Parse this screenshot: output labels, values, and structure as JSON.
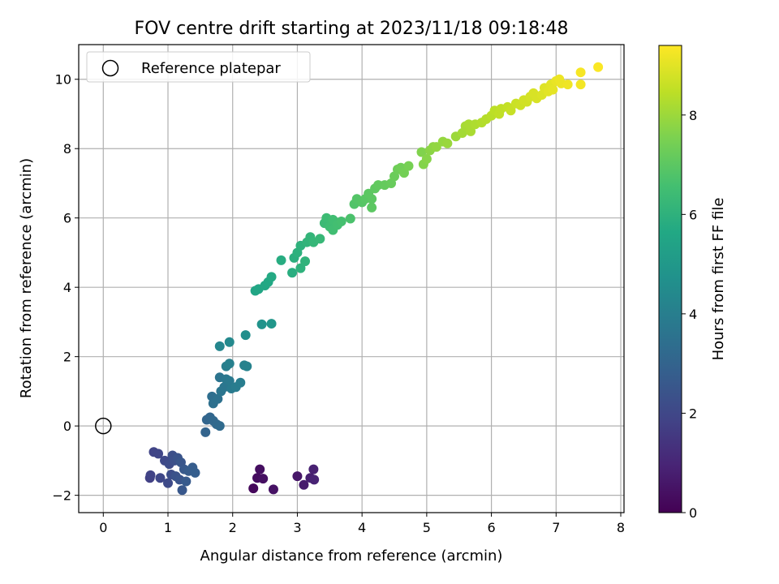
{
  "chart_data": {
    "type": "scatter",
    "title": "FOV centre drift starting at 2023/11/18 09:18:48",
    "xlabel": "Angular distance from reference (arcmin)",
    "ylabel": "Rotation from reference (arcmin)",
    "colorbar_label": "Hours from first FF file",
    "xlim": [
      -0.38,
      8.05
    ],
    "ylim": [
      -2.5,
      11.0
    ],
    "x_ticks": [
      0,
      1,
      2,
      3,
      4,
      5,
      6,
      7,
      8
    ],
    "y_ticks": [
      -2,
      0,
      2,
      4,
      6,
      8,
      10
    ],
    "colorbar_ticks": [
      0,
      2,
      4,
      6,
      8
    ],
    "colorbar_range": [
      0,
      9.4
    ],
    "colormap": "viridis",
    "grid": true,
    "legend_location": "upper left",
    "legend": [
      {
        "label": "Reference platepar",
        "marker": "open-circle"
      }
    ],
    "reference_point": {
      "x": 0,
      "y": 0
    },
    "points": [
      {
        "x": 2.32,
        "y": -1.8,
        "t": 0.2
      },
      {
        "x": 2.38,
        "y": -1.5,
        "t": 0.3
      },
      {
        "x": 2.42,
        "y": -1.25,
        "t": 0.35
      },
      {
        "x": 2.47,
        "y": -1.52,
        "t": 0.4
      },
      {
        "x": 2.63,
        "y": -1.83,
        "t": 0.45
      },
      {
        "x": 3.0,
        "y": -1.45,
        "t": 0.6
      },
      {
        "x": 3.1,
        "y": -1.7,
        "t": 0.7
      },
      {
        "x": 3.2,
        "y": -1.5,
        "t": 0.8
      },
      {
        "x": 3.25,
        "y": -1.25,
        "t": 0.85
      },
      {
        "x": 3.26,
        "y": -1.55,
        "t": 0.9
      },
      {
        "x": 0.72,
        "y": -1.5,
        "t": 1.8
      },
      {
        "x": 0.73,
        "y": -1.42,
        "t": 1.85
      },
      {
        "x": 0.78,
        "y": -0.75,
        "t": 1.9
      },
      {
        "x": 0.85,
        "y": -0.8,
        "t": 1.95
      },
      {
        "x": 0.88,
        "y": -1.5,
        "t": 2.0
      },
      {
        "x": 0.95,
        "y": -1.0,
        "t": 2.05
      },
      {
        "x": 1.0,
        "y": -1.65,
        "t": 2.1
      },
      {
        "x": 1.02,
        "y": -1.1,
        "t": 2.15
      },
      {
        "x": 1.05,
        "y": -1.4,
        "t": 2.2
      },
      {
        "x": 1.07,
        "y": -0.85,
        "t": 2.25
      },
      {
        "x": 1.1,
        "y": -1.0,
        "t": 2.3
      },
      {
        "x": 1.12,
        "y": -1.45,
        "t": 2.35
      },
      {
        "x": 1.15,
        "y": -0.92,
        "t": 2.4
      },
      {
        "x": 1.18,
        "y": -1.55,
        "t": 2.45
      },
      {
        "x": 1.2,
        "y": -1.05,
        "t": 2.5
      },
      {
        "x": 1.22,
        "y": -1.85,
        "t": 2.55
      },
      {
        "x": 1.25,
        "y": -1.25,
        "t": 2.6
      },
      {
        "x": 1.28,
        "y": -1.6,
        "t": 2.65
      },
      {
        "x": 1.32,
        "y": -1.3,
        "t": 2.7
      },
      {
        "x": 1.38,
        "y": -1.2,
        "t": 2.75
      },
      {
        "x": 1.42,
        "y": -1.35,
        "t": 2.8
      },
      {
        "x": 1.58,
        "y": -0.18,
        "t": 3.0
      },
      {
        "x": 1.6,
        "y": 0.18,
        "t": 3.05
      },
      {
        "x": 1.65,
        "y": 0.25,
        "t": 3.1
      },
      {
        "x": 1.7,
        "y": 0.15,
        "t": 3.15
      },
      {
        "x": 1.75,
        "y": 0.05,
        "t": 3.2
      },
      {
        "x": 1.8,
        "y": 0.0,
        "t": 3.25
      },
      {
        "x": 1.68,
        "y": 0.85,
        "t": 3.4
      },
      {
        "x": 1.7,
        "y": 0.65,
        "t": 3.45
      },
      {
        "x": 1.77,
        "y": 0.78,
        "t": 3.5
      },
      {
        "x": 1.8,
        "y": 1.4,
        "t": 3.6
      },
      {
        "x": 1.82,
        "y": 1.0,
        "t": 3.65
      },
      {
        "x": 1.87,
        "y": 1.12,
        "t": 3.7
      },
      {
        "x": 1.9,
        "y": 1.35,
        "t": 3.75
      },
      {
        "x": 1.95,
        "y": 1.3,
        "t": 3.8
      },
      {
        "x": 1.98,
        "y": 1.08,
        "t": 3.85
      },
      {
        "x": 2.05,
        "y": 1.12,
        "t": 3.9
      },
      {
        "x": 2.12,
        "y": 1.25,
        "t": 3.95
      },
      {
        "x": 1.9,
        "y": 1.72,
        "t": 4.0
      },
      {
        "x": 1.95,
        "y": 1.8,
        "t": 4.05
      },
      {
        "x": 2.18,
        "y": 1.75,
        "t": 4.1
      },
      {
        "x": 2.22,
        "y": 1.72,
        "t": 4.15
      },
      {
        "x": 1.8,
        "y": 2.3,
        "t": 4.3
      },
      {
        "x": 1.95,
        "y": 2.42,
        "t": 4.4
      },
      {
        "x": 2.2,
        "y": 2.62,
        "t": 4.6
      },
      {
        "x": 2.45,
        "y": 2.93,
        "t": 4.8
      },
      {
        "x": 2.6,
        "y": 2.95,
        "t": 4.9
      },
      {
        "x": 2.35,
        "y": 3.9,
        "t": 5.5
      },
      {
        "x": 2.4,
        "y": 3.95,
        "t": 5.55
      },
      {
        "x": 2.5,
        "y": 4.05,
        "t": 5.6
      },
      {
        "x": 2.55,
        "y": 4.15,
        "t": 5.65
      },
      {
        "x": 2.6,
        "y": 4.3,
        "t": 5.7
      },
      {
        "x": 2.75,
        "y": 4.78,
        "t": 5.8
      },
      {
        "x": 2.92,
        "y": 4.42,
        "t": 5.85
      },
      {
        "x": 2.95,
        "y": 4.85,
        "t": 5.9
      },
      {
        "x": 3.0,
        "y": 5.0,
        "t": 5.95
      },
      {
        "x": 3.05,
        "y": 5.2,
        "t": 6.0
      },
      {
        "x": 3.05,
        "y": 4.55,
        "t": 6.0
      },
      {
        "x": 3.12,
        "y": 4.75,
        "t": 6.05
      },
      {
        "x": 3.15,
        "y": 5.3,
        "t": 6.1
      },
      {
        "x": 3.2,
        "y": 5.45,
        "t": 6.15
      },
      {
        "x": 3.25,
        "y": 5.3,
        "t": 6.2
      },
      {
        "x": 3.35,
        "y": 5.4,
        "t": 6.25
      },
      {
        "x": 3.42,
        "y": 5.85,
        "t": 6.35
      },
      {
        "x": 3.45,
        "y": 6.0,
        "t": 6.4
      },
      {
        "x": 3.5,
        "y": 5.75,
        "t": 6.45
      },
      {
        "x": 3.55,
        "y": 5.95,
        "t": 6.5
      },
      {
        "x": 3.55,
        "y": 5.65,
        "t": 6.5
      },
      {
        "x": 3.62,
        "y": 5.8,
        "t": 6.55
      },
      {
        "x": 3.68,
        "y": 5.9,
        "t": 6.6
      },
      {
        "x": 3.82,
        "y": 5.98,
        "t": 6.7
      },
      {
        "x": 3.88,
        "y": 6.4,
        "t": 6.8
      },
      {
        "x": 3.92,
        "y": 6.55,
        "t": 6.85
      },
      {
        "x": 4.0,
        "y": 6.45,
        "t": 6.9
      },
      {
        "x": 4.05,
        "y": 6.55,
        "t": 6.95
      },
      {
        "x": 4.1,
        "y": 6.7,
        "t": 7.0
      },
      {
        "x": 4.15,
        "y": 6.55,
        "t": 7.0
      },
      {
        "x": 4.15,
        "y": 6.3,
        "t": 7.0
      },
      {
        "x": 4.2,
        "y": 6.85,
        "t": 7.05
      },
      {
        "x": 4.25,
        "y": 6.95,
        "t": 7.1
      },
      {
        "x": 4.35,
        "y": 6.95,
        "t": 7.15
      },
      {
        "x": 4.45,
        "y": 7.0,
        "t": 7.2
      },
      {
        "x": 4.5,
        "y": 7.2,
        "t": 7.25
      },
      {
        "x": 4.55,
        "y": 7.4,
        "t": 7.3
      },
      {
        "x": 4.6,
        "y": 7.45,
        "t": 7.35
      },
      {
        "x": 4.65,
        "y": 7.3,
        "t": 7.4
      },
      {
        "x": 4.72,
        "y": 7.5,
        "t": 7.45
      },
      {
        "x": 4.92,
        "y": 7.9,
        "t": 7.6
      },
      {
        "x": 4.95,
        "y": 7.55,
        "t": 7.65
      },
      {
        "x": 5.0,
        "y": 7.7,
        "t": 7.7
      },
      {
        "x": 5.05,
        "y": 7.95,
        "t": 7.75
      },
      {
        "x": 5.1,
        "y": 8.05,
        "t": 7.8
      },
      {
        "x": 5.15,
        "y": 8.05,
        "t": 7.85
      },
      {
        "x": 5.25,
        "y": 8.2,
        "t": 7.9
      },
      {
        "x": 5.32,
        "y": 8.15,
        "t": 7.95
      },
      {
        "x": 5.45,
        "y": 8.35,
        "t": 8.0
      },
      {
        "x": 5.55,
        "y": 8.45,
        "t": 8.1
      },
      {
        "x": 5.6,
        "y": 8.65,
        "t": 8.15
      },
      {
        "x": 5.65,
        "y": 8.7,
        "t": 8.2
      },
      {
        "x": 5.68,
        "y": 8.5,
        "t": 8.2
      },
      {
        "x": 5.75,
        "y": 8.7,
        "t": 8.25
      },
      {
        "x": 5.85,
        "y": 8.75,
        "t": 8.3
      },
      {
        "x": 5.92,
        "y": 8.85,
        "t": 8.35
      },
      {
        "x": 6.0,
        "y": 8.95,
        "t": 8.4
      },
      {
        "x": 6.05,
        "y": 9.1,
        "t": 8.45
      },
      {
        "x": 6.12,
        "y": 9.0,
        "t": 8.5
      },
      {
        "x": 6.15,
        "y": 9.15,
        "t": 8.5
      },
      {
        "x": 6.25,
        "y": 9.2,
        "t": 8.55
      },
      {
        "x": 6.3,
        "y": 9.1,
        "t": 8.6
      },
      {
        "x": 6.38,
        "y": 9.3,
        "t": 8.65
      },
      {
        "x": 6.45,
        "y": 9.25,
        "t": 8.7
      },
      {
        "x": 6.5,
        "y": 9.4,
        "t": 8.75
      },
      {
        "x": 6.55,
        "y": 9.35,
        "t": 8.75
      },
      {
        "x": 6.6,
        "y": 9.5,
        "t": 8.8
      },
      {
        "x": 6.65,
        "y": 9.6,
        "t": 8.85
      },
      {
        "x": 6.7,
        "y": 9.45,
        "t": 8.85
      },
      {
        "x": 6.78,
        "y": 9.55,
        "t": 8.9
      },
      {
        "x": 6.82,
        "y": 9.75,
        "t": 8.95
      },
      {
        "x": 6.88,
        "y": 9.65,
        "t": 9.0
      },
      {
        "x": 6.92,
        "y": 9.85,
        "t": 9.0
      },
      {
        "x": 6.95,
        "y": 9.7,
        "t": 9.05
      },
      {
        "x": 7.0,
        "y": 9.95,
        "t": 9.1
      },
      {
        "x": 7.05,
        "y": 10.0,
        "t": 9.15
      },
      {
        "x": 7.08,
        "y": 9.88,
        "t": 9.15
      },
      {
        "x": 7.18,
        "y": 9.85,
        "t": 9.2
      },
      {
        "x": 7.38,
        "y": 9.85,
        "t": 9.25
      },
      {
        "x": 7.38,
        "y": 10.2,
        "t": 9.3
      },
      {
        "x": 7.65,
        "y": 10.35,
        "t": 9.35
      }
    ]
  }
}
